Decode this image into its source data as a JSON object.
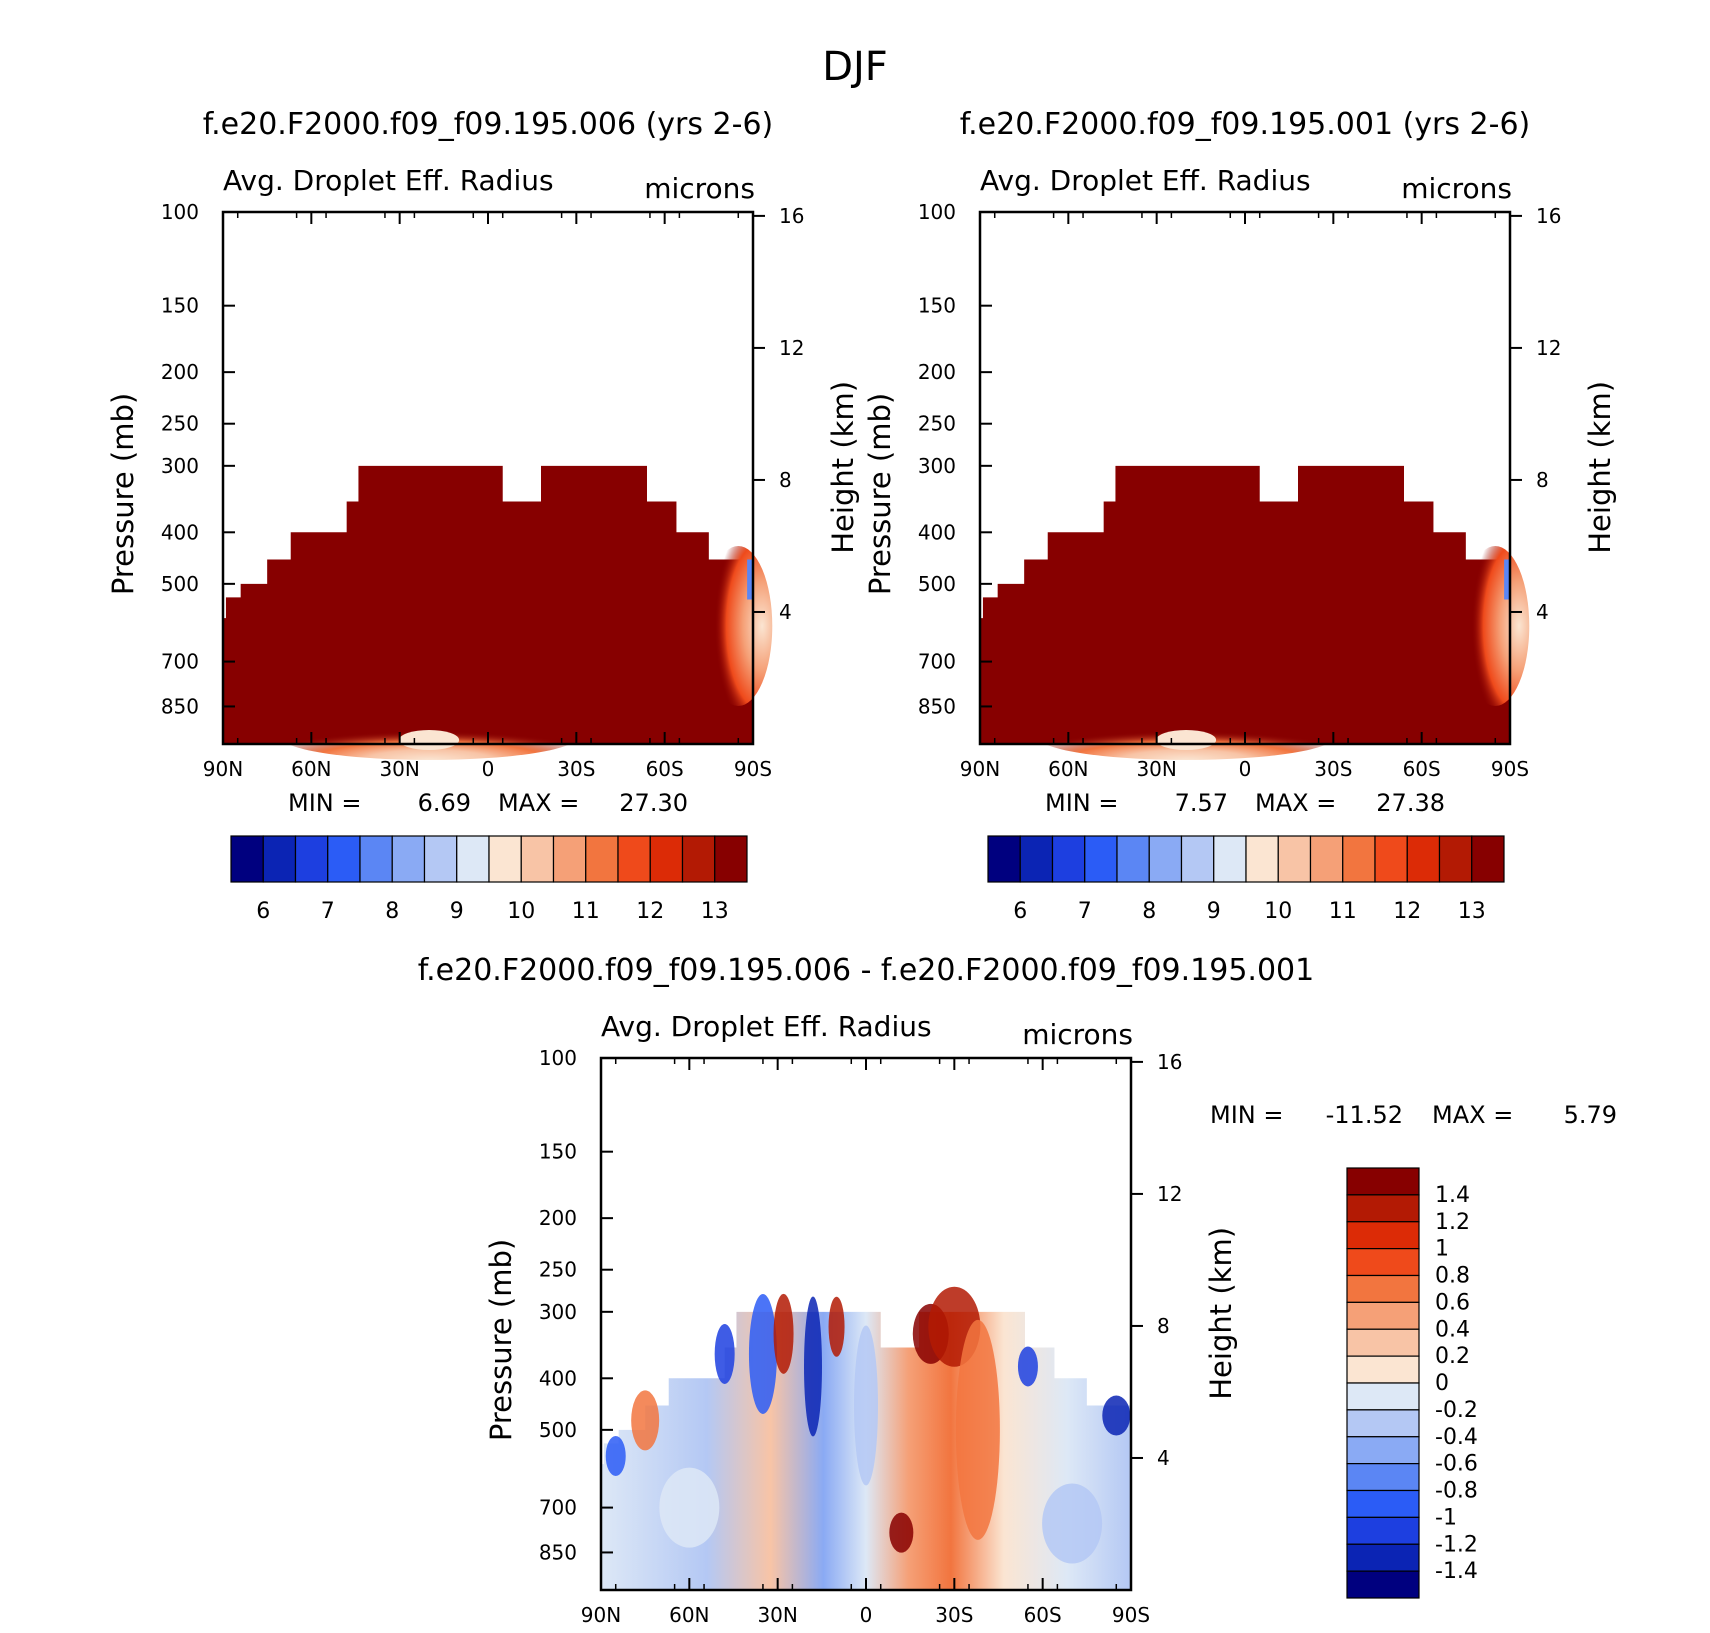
{
  "figure": {
    "title": "DJF"
  },
  "colors": {
    "abs": [
      "#00007f",
      "#0b24b4",
      "#1d3fe0",
      "#2b5cf6",
      "#5b86f4",
      "#8aaaf4",
      "#b4c8f4",
      "#dde8f6",
      "#fbe5d2",
      "#f8c4a6",
      "#f5a077",
      "#f2753f",
      "#ef4a1b",
      "#dc2b06",
      "#b31a04",
      "#870000"
    ],
    "diff": [
      "#00007f",
      "#0b24b4",
      "#1d3fe0",
      "#2b5cf6",
      "#5b86f4",
      "#8aaaf4",
      "#b4c8f4",
      "#dde8f6",
      "#fbe5d2",
      "#f8c4a6",
      "#f5a077",
      "#f2753f",
      "#ef4a1b",
      "#dc2b06",
      "#b31a04",
      "#870000"
    ]
  },
  "panels": [
    {
      "title": "f.e20.F2000.f09_f09.195.006 (yrs 2-6)",
      "variable": "Avg. Droplet Eff. Radius",
      "units": "microns",
      "ylabel": "Pressure (mb)",
      "y2label": "Height (km)",
      "min_label": "MIN =",
      "min_value": "6.69",
      "max_label": "MAX =",
      "max_value": "27.30"
    },
    {
      "title": "f.e20.F2000.f09_f09.195.001 (yrs 2-6)",
      "variable": "Avg. Droplet Eff. Radius",
      "units": "microns",
      "ylabel": "Pressure (mb)",
      "y2label": "Height (km)",
      "min_label": "MIN =",
      "min_value": "7.57",
      "max_label": "MAX =",
      "max_value": "27.38"
    },
    {
      "title": "f.e20.F2000.f09_f09.195.006 - f.e20.F2000.f09_f09.195.001",
      "variable": "Avg. Droplet Eff. Radius",
      "units": "microns",
      "ylabel": "Pressure (mb)",
      "y2label": "Height (km)",
      "min_label": "MIN =",
      "min_value": "-11.52",
      "max_label": "MAX =",
      "max_value": "5.79"
    }
  ],
  "chart_data": {
    "type": "heatmap",
    "x_ticks": [
      "90N",
      "60N",
      "30N",
      "0",
      "30S",
      "60S",
      "90S"
    ],
    "y_ticks": [
      "100",
      "150",
      "200",
      "250",
      "300",
      "400",
      "500",
      "700",
      "850"
    ],
    "y_tick_values": [
      100,
      150,
      200,
      250,
      300,
      400,
      500,
      700,
      850
    ],
    "ylim": [
      100,
      1000
    ],
    "y_scale": "log",
    "y2_ticks": [
      "16",
      "12",
      "8",
      "4"
    ],
    "y2_tick_values": [
      16,
      12,
      8,
      4
    ],
    "abs_colorbar_labels": [
      "6",
      "7",
      "8",
      "9",
      "10",
      "11",
      "12",
      "13"
    ],
    "diff_colorbar_labels": [
      "1.4",
      "1.2",
      "1",
      "0.8",
      "0.6",
      "0.4",
      "0.2",
      "0",
      "-0.2",
      "-0.4",
      "-0.6",
      "-0.8",
      "-1",
      "-1.2",
      "-1.4"
    ],
    "cloud_top_pressure": [
      {
        "lat_from": 90,
        "lat_to": 89,
        "p_top": 580
      },
      {
        "lat_from": 89,
        "lat_to": 84,
        "p_top": 530
      },
      {
        "lat_from": 84,
        "lat_to": 75,
        "p_top": 500
      },
      {
        "lat_from": 75,
        "lat_to": 67,
        "p_top": 450
      },
      {
        "lat_from": 67,
        "lat_to": 48,
        "p_top": 400
      },
      {
        "lat_from": 48,
        "lat_to": 44,
        "p_top": 350
      },
      {
        "lat_from": 44,
        "lat_to": -5,
        "p_top": 300
      },
      {
        "lat_from": -5,
        "lat_to": -18,
        "p_top": 350
      },
      {
        "lat_from": -18,
        "lat_to": -54,
        "p_top": 300
      },
      {
        "lat_from": -54,
        "lat_to": -64,
        "p_top": 350
      },
      {
        "lat_from": -64,
        "lat_to": -75,
        "p_top": 400
      },
      {
        "lat_from": -75,
        "lat_to": -90,
        "p_top": 450
      }
    ]
  }
}
